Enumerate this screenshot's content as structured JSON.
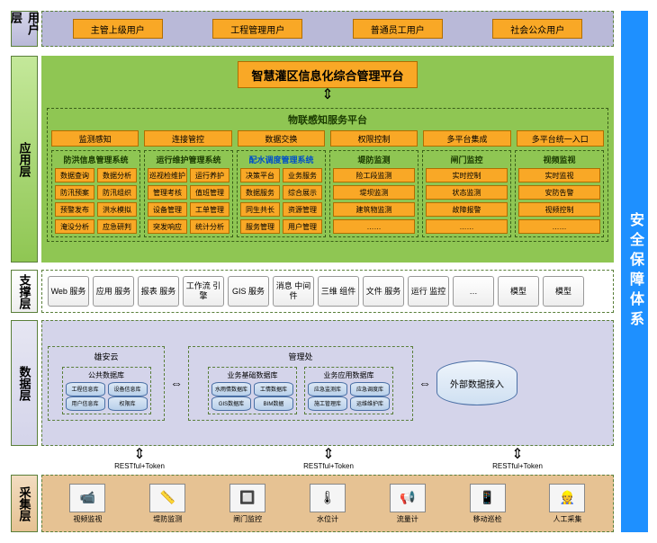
{
  "rightBar": "安全保障体系",
  "layers": {
    "user": {
      "label": "用户层",
      "items": [
        "主管上级用户",
        "工程管理用户",
        "普通员工用户",
        "社会公众用户"
      ]
    },
    "app": {
      "label": "应用层"
    },
    "support": {
      "label": "支撑层",
      "items": [
        "Web\n服务",
        "应用\n服务",
        "报表\n服务",
        "工作流\n引擎",
        "GIS\n服务",
        "消息\n中间件",
        "三维\n组件",
        "文件\n服务",
        "运行\n监控",
        "…",
        "模型",
        "模型"
      ]
    },
    "data": {
      "label": "数据层"
    },
    "collect": {
      "label": "采集层",
      "items": [
        {
          "icon": "📹",
          "label": "视频监视"
        },
        {
          "icon": "📏",
          "label": "堤防监测"
        },
        {
          "icon": "🔲",
          "label": "闸门监控"
        },
        {
          "icon": "🌡",
          "label": "水位计"
        },
        {
          "icon": "📢",
          "label": "流量计"
        },
        {
          "icon": "📱",
          "label": "移动巡检"
        },
        {
          "icon": "👷",
          "label": "人工采集"
        }
      ]
    }
  },
  "platformTitle": "智慧灌区信息化综合管理平台",
  "iotPlatform": {
    "title": "物联感知服务平台",
    "row": [
      "监测感知",
      "连接管控",
      "数据交换",
      "权限控制",
      "多平台集成",
      "多平台统一入口"
    ]
  },
  "subsystems": [
    {
      "title": "防洪信息管理系统",
      "cols": 2,
      "cells": [
        "数据查询",
        "数据分析",
        "防汛预案",
        "防汛组织",
        "预警发布",
        "洪水模拟",
        "淹没分析",
        "应急研判"
      ]
    },
    {
      "title": "运行维护管理系统",
      "cols": 2,
      "cells": [
        "巡视检维护",
        "运行养护",
        "管理考核",
        "值班管理",
        "设备管理",
        "工单管理",
        "突发响应",
        "统计分析"
      ]
    },
    {
      "title": "配水调度管理系统",
      "hl": true,
      "cols": 2,
      "cells": [
        "决策平台",
        "业务服务",
        "数据服务",
        "综合展示",
        "同生共长",
        "资源管理",
        "服务管理",
        "用户管理"
      ]
    },
    {
      "title": "堤防监测",
      "cols": 1,
      "cells": [
        "险工段监测",
        "堤坝监测",
        "建筑物监测",
        "……"
      ]
    },
    {
      "title": "闸门监控",
      "cols": 1,
      "cells": [
        "实时控制",
        "状态监测",
        "故障报警",
        "……"
      ]
    },
    {
      "title": "视频监视",
      "cols": 1,
      "cells": [
        "实时监视",
        "安防告警",
        "视频控制",
        "……"
      ]
    }
  ],
  "dataLayer": {
    "group1": {
      "title": "雄安云",
      "sub": {
        "title": "公共数据库",
        "rows": [
          [
            "工程信息库",
            "设备信息库"
          ],
          [
            "用户信息库",
            "权限库"
          ]
        ]
      }
    },
    "group2": {
      "title": "管理处",
      "subs": [
        {
          "title": "业务基础数据库",
          "rows": [
            [
              "水雨情数据库",
              "工情数据库"
            ],
            [
              "GIS数据库",
              "BIM数据"
            ]
          ]
        },
        {
          "title": "业务应用数据库",
          "rows": [
            [
              "应急监测库",
              "应急调度库"
            ],
            [
              "施工管理库",
              "运维维护库"
            ]
          ]
        }
      ]
    },
    "ext": "外部数据接入",
    "restful": "RESTful+Token"
  },
  "colors": {
    "orange": "#f9a826",
    "orangeBorder": "#b06d00",
    "green": "#8fc653",
    "greenDark": "#3a5f1a",
    "purple": "#b9b9d8",
    "tan": "#e6c293",
    "blue": "#1e90ff"
  }
}
